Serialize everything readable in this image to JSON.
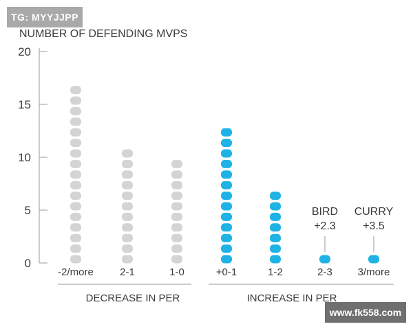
{
  "watermark": "TG: MYYJJPP",
  "site_badge": "www.fk558.com",
  "colors": {
    "decrease": "#d4d4d4",
    "increase": "#1fb3e5",
    "axis": "#9a9a9a",
    "text": "#3a3a3a"
  },
  "chart_data": {
    "type": "bar",
    "title": "NUMBER OF DEFENDING MVPS",
    "ylim": [
      0,
      20
    ],
    "yticks": [
      0,
      5,
      10,
      15,
      20
    ],
    "categories": [
      "-2/more",
      "2-1",
      "1-0",
      "+0-1",
      "1-2",
      "2-3",
      "3/more"
    ],
    "values": [
      17,
      11,
      10,
      13,
      7,
      1,
      1
    ],
    "category_groups": [
      {
        "label": "DECREASE IN PER",
        "categories": [
          "-2/more",
          "2-1",
          "1-0"
        ],
        "color": "decrease"
      },
      {
        "label": "INCREASE IN PER",
        "categories": [
          "+0-1",
          "1-2",
          "2-3",
          "3/more"
        ],
        "color": "increase"
      }
    ],
    "annotations": [
      {
        "category": "2-3",
        "name": "BIRD",
        "value": "+2.3"
      },
      {
        "category": "3/more",
        "name": "CURRY",
        "value": "+3.5"
      }
    ],
    "grid": false,
    "legend": "none"
  }
}
